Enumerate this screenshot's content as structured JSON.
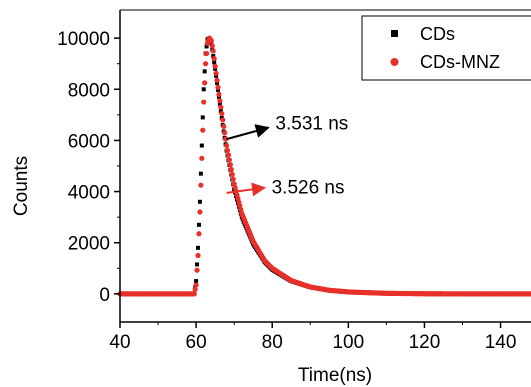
{
  "chart_data": {
    "type": "scatter",
    "title": "",
    "xlabel": "Time(ns)",
    "ylabel": "Counts",
    "xlim": [
      40,
      148
    ],
    "ylim": [
      -1100,
      11100
    ],
    "xticks": [
      40,
      60,
      80,
      100,
      120,
      140
    ],
    "yticks": [
      0,
      2000,
      4000,
      6000,
      8000,
      10000
    ],
    "legend_position": "top-right",
    "series": [
      {
        "name": "CDs",
        "color": "#000000",
        "marker": "square",
        "points": [
          [
            40,
            0
          ],
          [
            50,
            0
          ],
          [
            58,
            0
          ],
          [
            59.5,
            0
          ],
          [
            60,
            500
          ],
          [
            60.5,
            1800
          ],
          [
            61,
            3600
          ],
          [
            61.5,
            5800
          ],
          [
            62,
            8000
          ],
          [
            62.5,
            9400
          ],
          [
            63,
            9950
          ],
          [
            63.5,
            10000
          ],
          [
            64,
            9800
          ],
          [
            65,
            8800
          ],
          [
            66,
            7700
          ],
          [
            67,
            6600
          ],
          [
            68,
            5600
          ],
          [
            70,
            4100
          ],
          [
            72,
            3000
          ],
          [
            75,
            1950
          ],
          [
            78,
            1250
          ],
          [
            80,
            950
          ],
          [
            85,
            500
          ],
          [
            90,
            260
          ],
          [
            95,
            130
          ],
          [
            100,
            70
          ],
          [
            110,
            20
          ],
          [
            120,
            5
          ],
          [
            130,
            0
          ],
          [
            148,
            0
          ]
        ]
      },
      {
        "name": "CDs-MNZ",
        "color": "#e8302a",
        "marker": "circle",
        "points": [
          [
            40,
            0
          ],
          [
            50,
            0
          ],
          [
            58,
            0
          ],
          [
            59.5,
            0
          ],
          [
            60,
            350
          ],
          [
            60.5,
            1500
          ],
          [
            61,
            3200
          ],
          [
            61.5,
            5300
          ],
          [
            62,
            7500
          ],
          [
            62.5,
            9000
          ],
          [
            63,
            9800
          ],
          [
            63.5,
            10000
          ],
          [
            64,
            9900
          ],
          [
            64.5,
            9500
          ],
          [
            65,
            8900
          ],
          [
            66,
            7800
          ],
          [
            67,
            6800
          ],
          [
            68,
            5800
          ],
          [
            70,
            4300
          ],
          [
            72,
            3150
          ],
          [
            75,
            2050
          ],
          [
            78,
            1300
          ],
          [
            80,
            1000
          ],
          [
            85,
            520
          ],
          [
            90,
            270
          ],
          [
            95,
            140
          ],
          [
            100,
            75
          ],
          [
            110,
            22
          ],
          [
            120,
            6
          ],
          [
            130,
            0
          ],
          [
            148,
            0
          ]
        ]
      }
    ],
    "annotations": [
      {
        "text": "3.531 ns",
        "color": "#000000",
        "at": [
          72,
          6500
        ],
        "from": [
          68,
          6050
        ],
        "to": [
          79,
          6500
        ]
      },
      {
        "text": "3.526 ns",
        "color": "#e8302a",
        "at": [
          72,
          4000
        ],
        "from": [
          68,
          3950
        ],
        "to": [
          78,
          4150
        ]
      }
    ]
  }
}
